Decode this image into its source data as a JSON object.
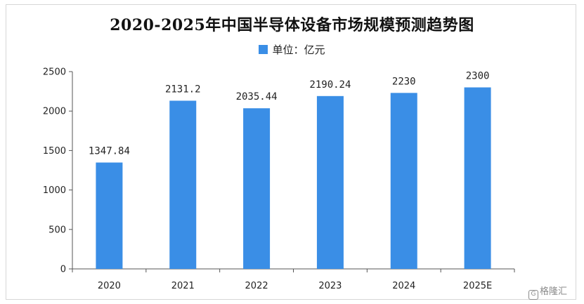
{
  "chart_data": {
    "type": "bar",
    "title": "2020-2025年中国半导体设备市场规模预测趋势图",
    "legend": {
      "label": "单位：亿元",
      "position": "top-center"
    },
    "categories": [
      "2020",
      "2021",
      "2022",
      "2023",
      "2024",
      "2025E"
    ],
    "values": [
      1347.84,
      2131.2,
      2035.44,
      2190.24,
      2230,
      2300
    ],
    "data_labels": [
      "1347.84",
      "2131.2",
      "2035.44",
      "2190.24",
      "2230",
      "2300"
    ],
    "y_ticks": [
      0,
      500,
      1000,
      1500,
      2000,
      2500
    ],
    "ylim": [
      0,
      2500
    ],
    "grid": false,
    "bar_color": "#3a8ee6"
  },
  "watermark": {
    "text": "格隆汇"
  }
}
